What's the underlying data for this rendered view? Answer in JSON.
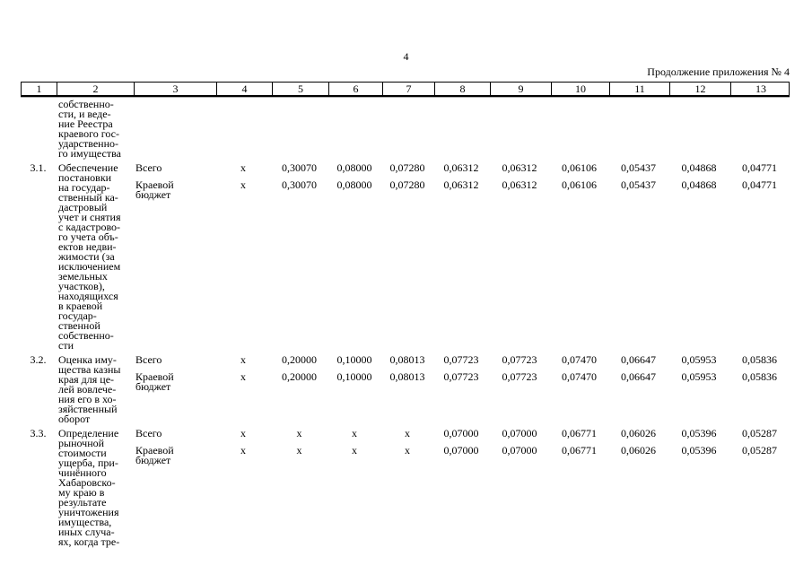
{
  "colors": {
    "text": "#000000",
    "background": "#ffffff"
  },
  "page": {
    "number": "4",
    "continuation_note": "Продолжение приложения № 4"
  },
  "table": {
    "column_numbers": [
      "1",
      "2",
      "3",
      "4",
      "5",
      "6",
      "7",
      "8",
      "9",
      "10",
      "11",
      "12",
      "13"
    ],
    "carryover_row": {
      "name": "собственно-\nсти, и веде-\nние Реестра\nкраевого гос-\nударственно-\nго имущества"
    },
    "rows": [
      {
        "num": "3.1.",
        "name": "Обеспечение\nпостановки\nна государ-\nственный ка-\nдастровый\nучет и снятия\nс кадастрово-\nго учета объ-\nектов недви-\nжимости (за\nисключением\nземельных\nучастков),\nнаходящихся\nв краевой\nгосудар-\nственной\nсобственно-\nсти",
        "budget_lines": [
          {
            "label": "Всего",
            "values": [
              "x",
              "0,30070",
              "0,08000",
              "0,07280",
              "0,06312",
              "0,06312",
              "0,06106",
              "0,05437",
              "0,04868",
              "0,04771"
            ]
          },
          {
            "label": "Краевой\nбюджет",
            "values": [
              "x",
              "0,30070",
              "0,08000",
              "0,07280",
              "0,06312",
              "0,06312",
              "0,06106",
              "0,05437",
              "0,04868",
              "0,04771"
            ]
          }
        ]
      },
      {
        "num": "3.2.",
        "name": "Оценка иму-\nщества казны\nкрая для це-\nлей вовлече-\nния его в хо-\nзяйственный\nоборот",
        "budget_lines": [
          {
            "label": "Всего",
            "values": [
              "x",
              "0,20000",
              "0,10000",
              "0,08013",
              "0,07723",
              "0,07723",
              "0,07470",
              "0,06647",
              "0,05953",
              "0,05836"
            ]
          },
          {
            "label": "Краевой\nбюджет",
            "values": [
              "x",
              "0,20000",
              "0,10000",
              "0,08013",
              "0,07723",
              "0,07723",
              "0,07470",
              "0,06647",
              "0,05953",
              "0,05836"
            ]
          }
        ]
      },
      {
        "num": "3.3.",
        "name": "Определение\nрыночной\nстоимости\nущерба, при-\nчинённого\nХабаровско-\nму краю в\nрезультате\nуничтожения\nимущества,\nиных случа-\nях, когда тре-",
        "budget_lines": [
          {
            "label": "Всего",
            "values": [
              "x",
              "x",
              "x",
              "x",
              "0,07000",
              "0,07000",
              "0,06771",
              "0,06026",
              "0,05396",
              "0,05287"
            ]
          },
          {
            "label": "Краевой\nбюджет",
            "values": [
              "x",
              "x",
              "x",
              "x",
              "0,07000",
              "0,07000",
              "0,06771",
              "0,06026",
              "0,05396",
              "0,05287"
            ]
          }
        ]
      }
    ]
  }
}
